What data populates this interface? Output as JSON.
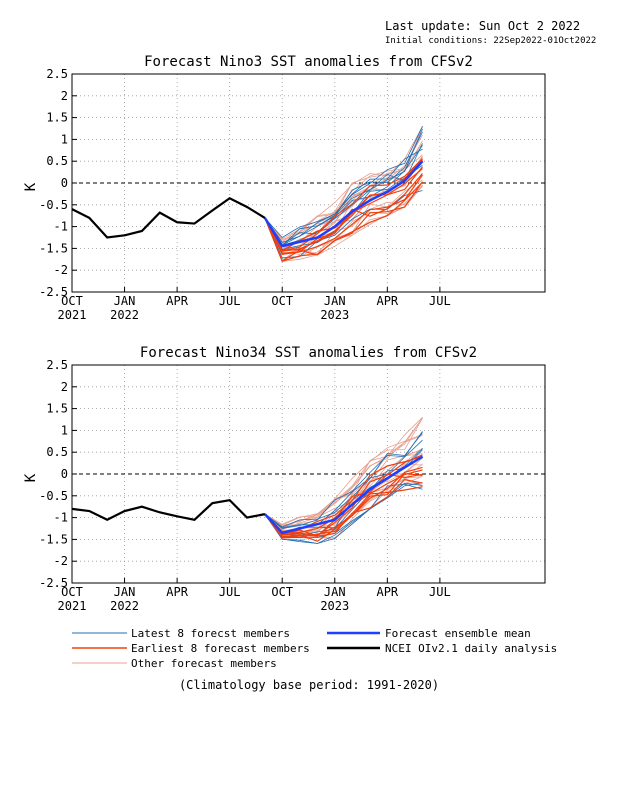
{
  "header": {
    "last_update": "Last update: Sun Oct  2 2022",
    "initial_condition": "Initial conditions: 22Sep2022-01Oct2022"
  },
  "legend": {
    "latest": "Latest 8 forecst members",
    "earliest": "Earliest 8 forecast members",
    "other": "Other forecast members",
    "mean": "Forecast ensemble mean",
    "obs": "NCEI OIv2.1 daily analysis"
  },
  "footnote": "(Climatology base period: 1991-2020)",
  "colors": {
    "latest": "#1f6fb5",
    "earliest": "#f04010",
    "other": "#e8a090",
    "mean": "#1f3fff",
    "obs": "#000000"
  },
  "chart_data": [
    {
      "type": "line",
      "title": "Forecast Nino3 SST anomalies from CFSv2",
      "ylabel": "K",
      "xlim": [
        0,
        9
      ],
      "ylim": [
        -2.5,
        2.5
      ],
      "yticks": [
        "2.5",
        "2",
        "1.5",
        "1",
        "0.5",
        "0",
        "-0.5",
        "-1",
        "-1.5",
        "-2",
        "-2.5"
      ],
      "xticks": [
        {
          "pos": 0,
          "month": "OCT",
          "year": "2021"
        },
        {
          "pos": 1,
          "month": "JAN",
          "year": "2022"
        },
        {
          "pos": 2,
          "month": "APR",
          "year": ""
        },
        {
          "pos": 3,
          "month": "JUL",
          "year": ""
        },
        {
          "pos": 4,
          "month": "OCT",
          "year": ""
        },
        {
          "pos": 5,
          "month": "JAN",
          "year": "2023"
        },
        {
          "pos": 6,
          "month": "APR",
          "year": ""
        },
        {
          "pos": 7,
          "month": "JUL",
          "year": ""
        }
      ],
      "grid": true,
      "observed": {
        "x": [
          0,
          0.33,
          0.67,
          1.0,
          1.33,
          1.67,
          2.0,
          2.33,
          2.67,
          3.0,
          3.33,
          3.67
        ],
        "y": [
          -0.6,
          -0.8,
          -1.25,
          -1.2,
          -1.1,
          -0.68,
          -0.9,
          -0.93,
          -0.63,
          -0.35,
          -0.55,
          -0.8
        ]
      },
      "ensemble_mean": {
        "x": [
          3.67,
          4.0,
          4.33,
          4.67,
          5.0,
          5.33,
          5.67,
          6.0,
          6.33,
          6.67
        ],
        "y": [
          -0.8,
          -1.45,
          -1.35,
          -1.25,
          -1.0,
          -0.65,
          -0.4,
          -0.2,
          0.05,
          0.5
        ]
      },
      "member_spread": {
        "x": [
          3.67,
          4.0,
          4.33,
          4.67,
          5.0,
          5.33,
          5.67,
          6.0,
          6.33,
          6.67
        ],
        "low": [
          -0.8,
          -1.8,
          -1.75,
          -1.65,
          -1.45,
          -1.2,
          -0.95,
          -0.75,
          -0.55,
          -0.3
        ],
        "high": [
          -0.8,
          -1.25,
          -1.0,
          -0.75,
          -0.45,
          0.0,
          0.3,
          0.35,
          0.55,
          1.3
        ]
      }
    },
    {
      "type": "line",
      "title": "Forecast Nino34 SST anomalies from CFSv2",
      "ylabel": "K",
      "xlim": [
        0,
        9
      ],
      "ylim": [
        -2.5,
        2.5
      ],
      "yticks": [
        "2.5",
        "2",
        "1.5",
        "1",
        "0.5",
        "0",
        "-0.5",
        "-1",
        "-1.5",
        "-2",
        "-2.5"
      ],
      "xticks": [
        {
          "pos": 0,
          "month": "OCT",
          "year": "2021"
        },
        {
          "pos": 1,
          "month": "JAN",
          "year": "2022"
        },
        {
          "pos": 2,
          "month": "APR",
          "year": ""
        },
        {
          "pos": 3,
          "month": "JUL",
          "year": ""
        },
        {
          "pos": 4,
          "month": "OCT",
          "year": ""
        },
        {
          "pos": 5,
          "month": "JAN",
          "year": "2023"
        },
        {
          "pos": 6,
          "month": "APR",
          "year": ""
        },
        {
          "pos": 7,
          "month": "JUL",
          "year": ""
        }
      ],
      "grid": true,
      "observed": {
        "x": [
          0,
          0.33,
          0.67,
          1.0,
          1.33,
          1.67,
          2.0,
          2.33,
          2.67,
          3.0,
          3.33,
          3.67
        ],
        "y": [
          -0.8,
          -0.85,
          -1.05,
          -0.85,
          -0.75,
          -0.88,
          -0.97,
          -1.05,
          -0.67,
          -0.6,
          -1.0,
          -0.92
        ]
      },
      "ensemble_mean": {
        "x": [
          3.67,
          4.0,
          4.33,
          4.67,
          5.0,
          5.33,
          5.67,
          6.0,
          6.33,
          6.67
        ],
        "y": [
          -0.92,
          -1.35,
          -1.25,
          -1.15,
          -1.05,
          -0.7,
          -0.35,
          -0.1,
          0.15,
          0.4
        ]
      },
      "member_spread": {
        "x": [
          3.67,
          4.0,
          4.33,
          4.67,
          5.0,
          5.33,
          5.67,
          6.0,
          6.33,
          6.67
        ],
        "low": [
          -0.92,
          -1.5,
          -1.55,
          -1.6,
          -1.5,
          -1.15,
          -0.8,
          -0.55,
          -0.4,
          -0.35
        ],
        "high": [
          -0.92,
          -1.15,
          -0.95,
          -0.85,
          -0.5,
          -0.1,
          0.35,
          0.6,
          0.9,
          1.3
        ]
      }
    }
  ]
}
